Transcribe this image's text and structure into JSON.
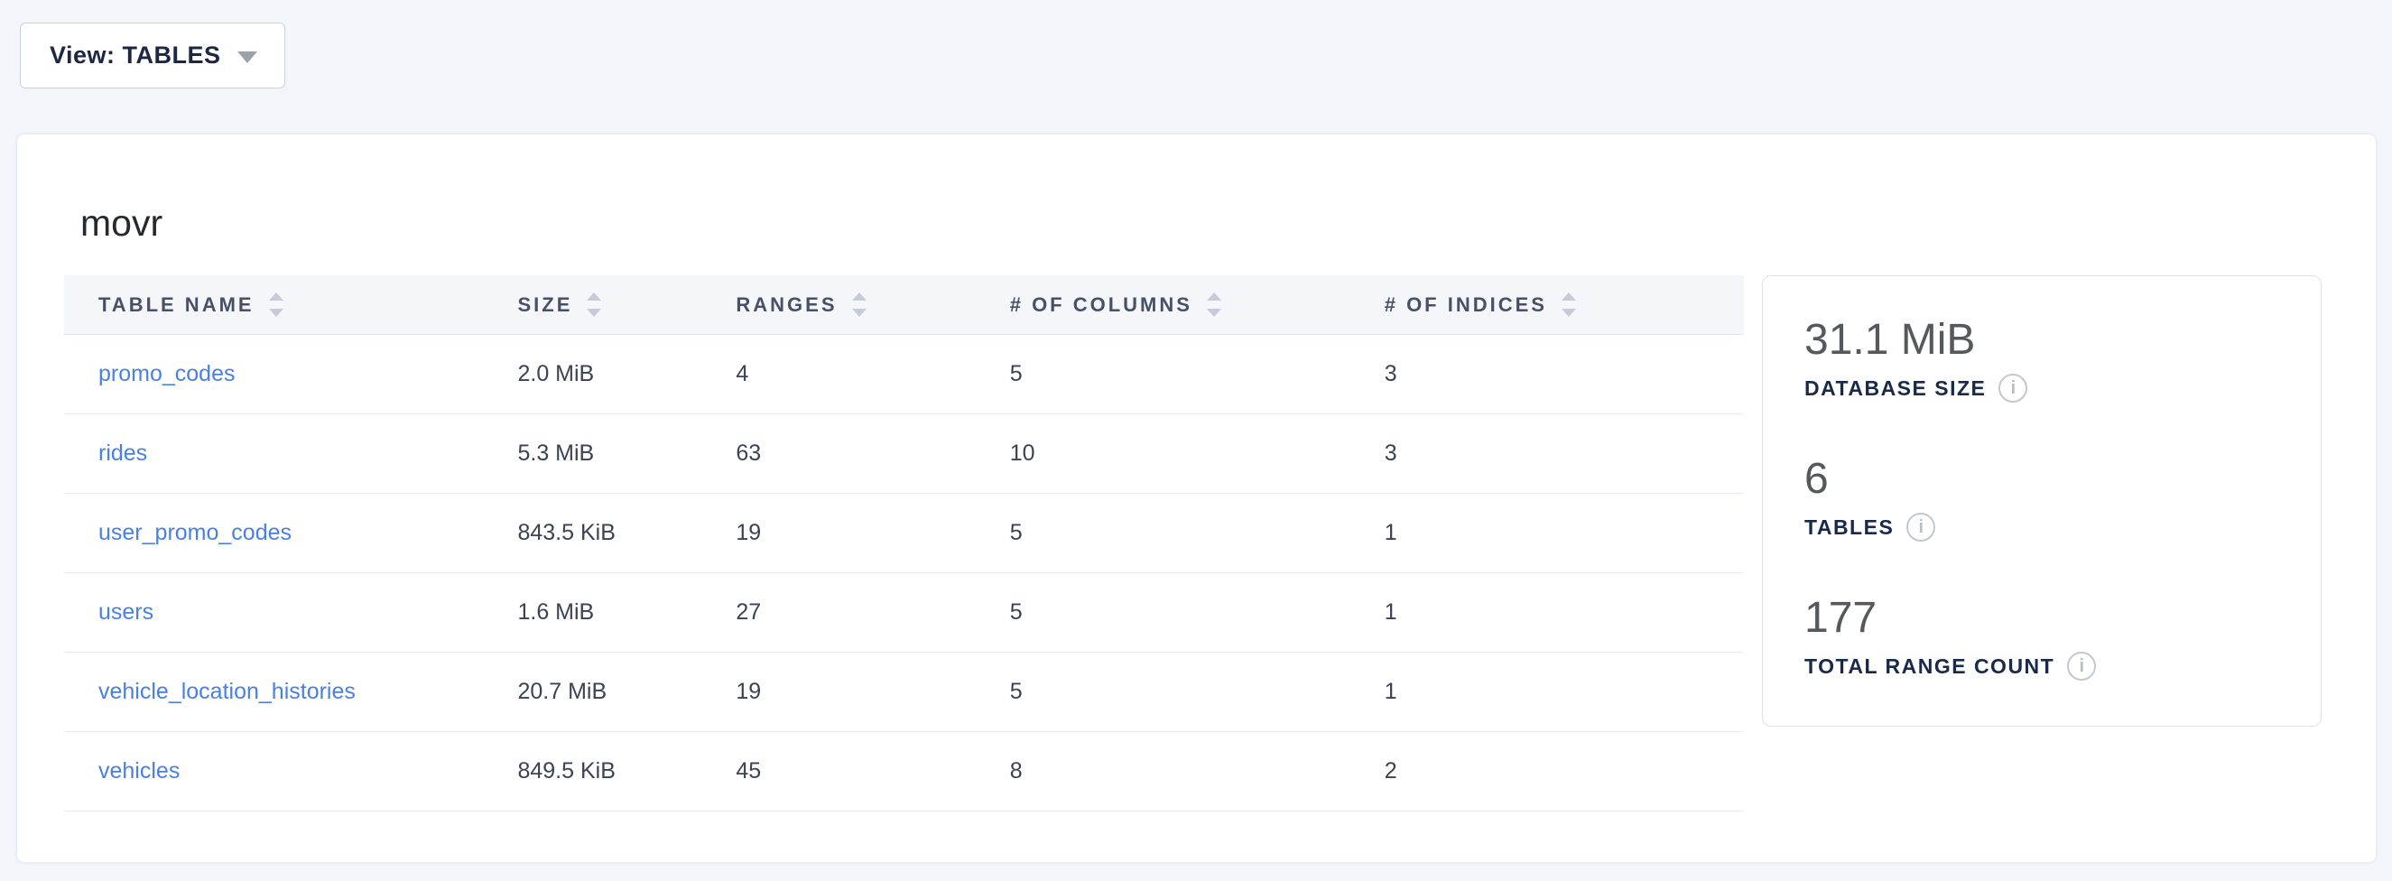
{
  "toolbar": {
    "view_selector": {
      "label": "View: TABLES"
    }
  },
  "database": {
    "title": "movr",
    "table": {
      "columns": [
        {
          "key": "table-name",
          "label": "TABLE NAME"
        },
        {
          "key": "size",
          "label": "SIZE"
        },
        {
          "key": "ranges",
          "label": "RANGES"
        },
        {
          "key": "columns",
          "label": "# OF COLUMNS"
        },
        {
          "key": "indices",
          "label": "# OF INDICES"
        }
      ],
      "rows": [
        {
          "name": "promo_codes",
          "size": "2.0 MiB",
          "ranges": "4",
          "columns": "5",
          "indices": "3"
        },
        {
          "name": "rides",
          "size": "5.3 MiB",
          "ranges": "63",
          "columns": "10",
          "indices": "3"
        },
        {
          "name": "user_promo_codes",
          "size": "843.5 KiB",
          "ranges": "19",
          "columns": "5",
          "indices": "1"
        },
        {
          "name": "users",
          "size": "1.6 MiB",
          "ranges": "27",
          "columns": "5",
          "indices": "1"
        },
        {
          "name": "vehicle_location_histories",
          "size": "20.7 MiB",
          "ranges": "19",
          "columns": "5",
          "indices": "1"
        },
        {
          "name": "vehicles",
          "size": "849.5 KiB",
          "ranges": "45",
          "columns": "8",
          "indices": "2"
        }
      ]
    },
    "summary": [
      {
        "value": "31.1 MiB",
        "label": "DATABASE SIZE"
      },
      {
        "value": "6",
        "label": "TABLES"
      },
      {
        "value": "177",
        "label": "TOTAL RANGE COUNT"
      }
    ]
  },
  "colors": {
    "page_background": "#f2f5f9",
    "card_background": "#ffffff",
    "table_header_background": "#f4f6fa",
    "link_blue": "#4a80e2",
    "header_text": "#475066",
    "label_navy": "#18294a",
    "stat_gray": "#55585c",
    "sort_arrow": "#c6cbd8",
    "info_icon_gray": "#c3c7cf"
  }
}
